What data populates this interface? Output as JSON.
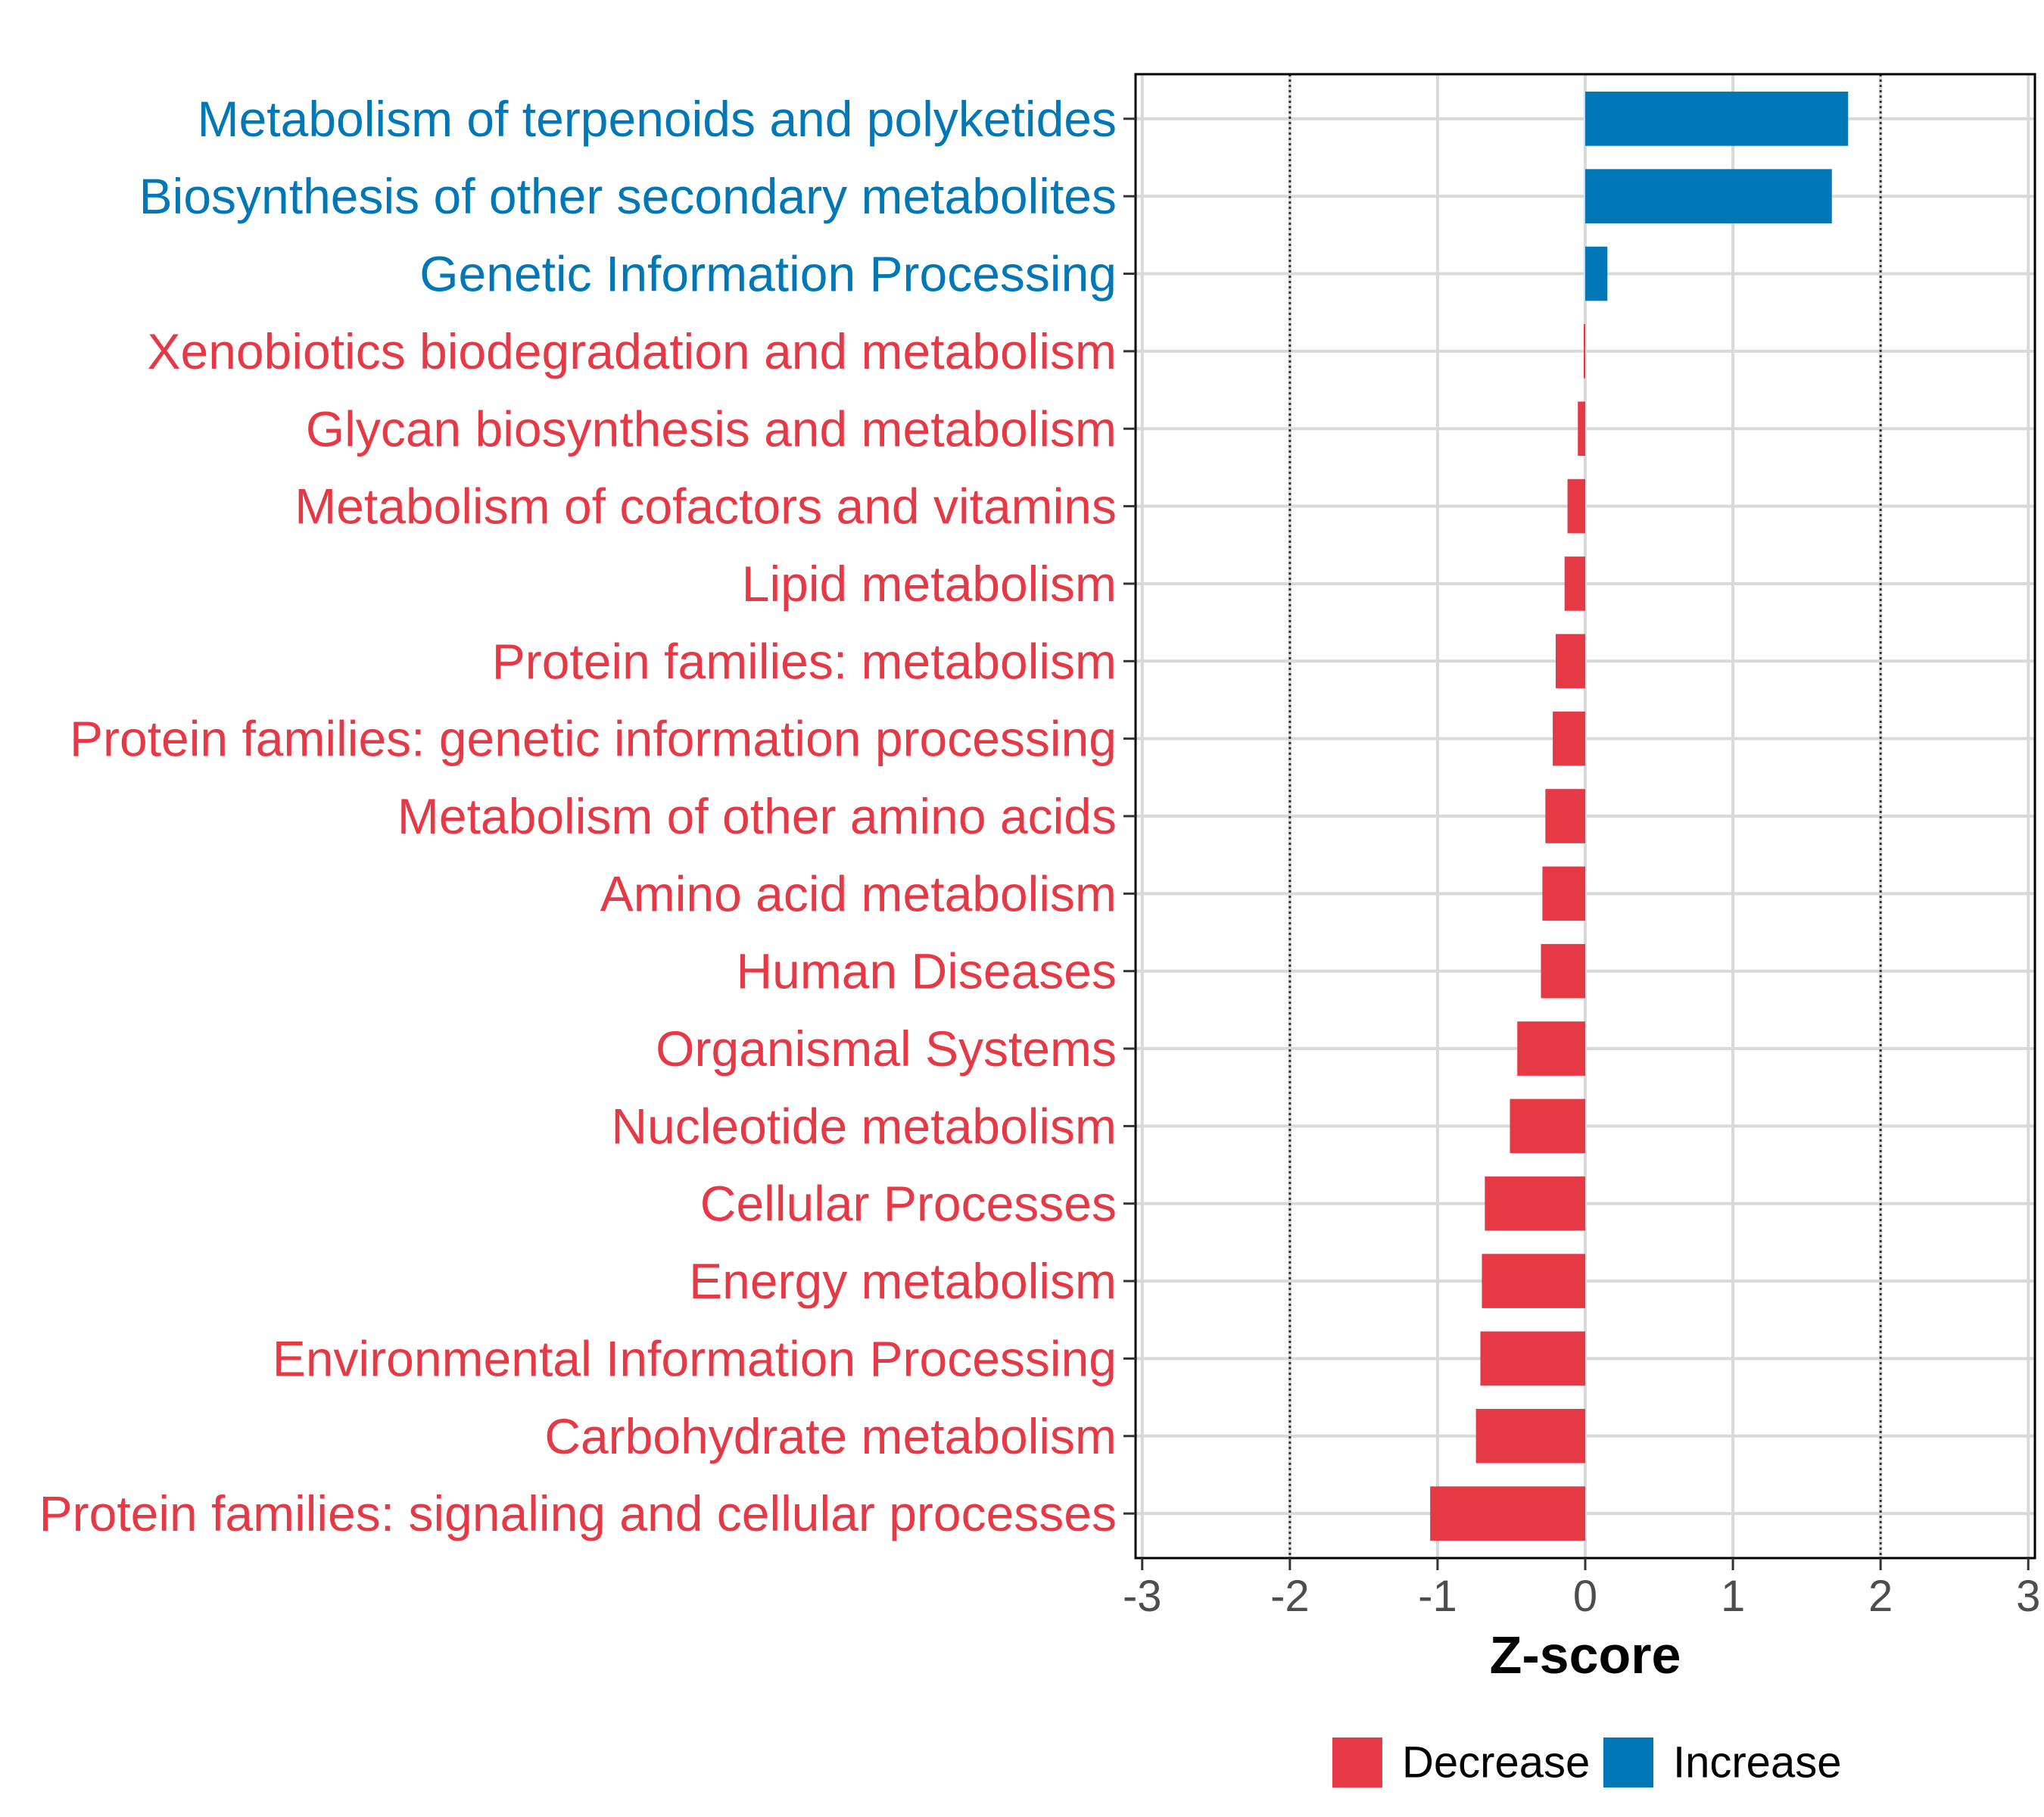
{
  "chart_data": {
    "type": "bar",
    "orientation": "horizontal",
    "title": "",
    "xlabel": "Z-score",
    "ylabel": "",
    "xlim": [
      -3,
      3
    ],
    "xticks": [
      -3,
      -2,
      -1,
      0,
      1,
      2,
      3
    ],
    "threshold_lines": [
      -2,
      2
    ],
    "grid": true,
    "legend_position": "bottom",
    "legend": [
      {
        "name": "Decrease",
        "color": "#E63946"
      },
      {
        "name": "Increase",
        "color": "#0077B6"
      }
    ],
    "categories": [
      "Metabolism of terpenoids and polyketides",
      "Biosynthesis of other secondary metabolites",
      "Genetic Information Processing",
      "Xenobiotics biodegradation and metabolism",
      "Glycan biosynthesis and metabolism",
      "Metabolism of cofactors and vitamins",
      "Lipid metabolism",
      "Protein families: metabolism",
      "Protein families: genetic information processing",
      "Metabolism of other amino acids",
      "Amino acid metabolism",
      "Human Diseases",
      "Organismal Systems",
      "Nucleotide metabolism",
      "Cellular Processes",
      "Energy metabolism",
      "Environmental Information Processing",
      "Carbohydrate metabolism",
      "Protein families: signaling and cellular processes"
    ],
    "values": [
      1.78,
      1.67,
      0.15,
      -0.01,
      -0.05,
      -0.12,
      -0.14,
      -0.2,
      -0.22,
      -0.27,
      -0.29,
      -0.3,
      -0.46,
      -0.51,
      -0.68,
      -0.7,
      -0.71,
      -0.74,
      -1.05
    ],
    "groups": [
      "Increase",
      "Increase",
      "Increase",
      "Decrease",
      "Decrease",
      "Decrease",
      "Decrease",
      "Decrease",
      "Decrease",
      "Decrease",
      "Decrease",
      "Decrease",
      "Decrease",
      "Decrease",
      "Decrease",
      "Decrease",
      "Decrease",
      "Decrease",
      "Decrease"
    ]
  }
}
